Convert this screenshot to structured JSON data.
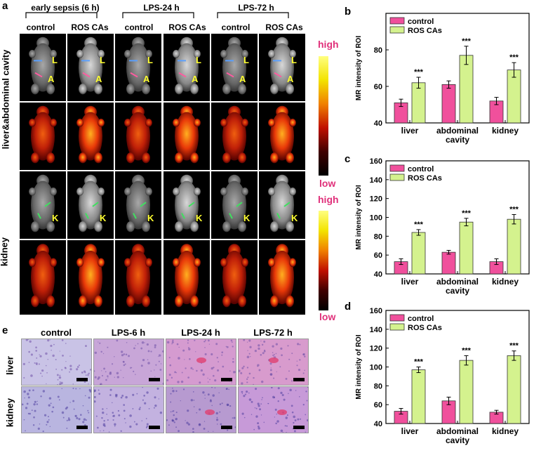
{
  "panel_labels": {
    "a": "a",
    "b": "b",
    "c": "c",
    "d": "d",
    "e": "e"
  },
  "panel_a": {
    "groups": [
      "early sepsis (6 h)",
      "LPS-24 h",
      "LPS-72 h"
    ],
    "conditions": [
      "control",
      "ROS CAs",
      "control",
      "ROS CAs",
      "control",
      "ROS CAs"
    ],
    "row_labels": {
      "liver": "liver&abdominal cavity",
      "kidney": "kidney"
    },
    "organ_marks": {
      "liver": "L",
      "abdominal": "A",
      "kidney": "K"
    },
    "colorbar": {
      "high": "high",
      "low": "low"
    }
  },
  "panel_e": {
    "columns": [
      "control",
      "LPS-6 h",
      "LPS-24 h",
      "LPS-72 h"
    ],
    "rows": [
      "liver",
      "kidney"
    ]
  },
  "chart_data": [
    {
      "id": "b",
      "type": "bar",
      "categories": [
        "liver",
        "abdominal\ncavity",
        "kidney"
      ],
      "series": [
        {
          "name": "control",
          "color": "#f0509c",
          "values": [
            51,
            61,
            52
          ],
          "errors": [
            2,
            2,
            2
          ]
        },
        {
          "name": "ROS CAs",
          "color": "#d4f28e",
          "values": [
            62,
            77,
            69
          ],
          "errors": [
            3,
            5,
            4
          ]
        }
      ],
      "significance": [
        "***",
        "***",
        "***"
      ],
      "ylabel": "MR intensity of ROI",
      "ylim": [
        40,
        100
      ],
      "yticks": [
        40,
        60,
        80
      ]
    },
    {
      "id": "c",
      "type": "bar",
      "categories": [
        "liver",
        "abdominal\ncavity",
        "kidney"
      ],
      "series": [
        {
          "name": "control",
          "color": "#f0509c",
          "values": [
            53,
            63,
            53
          ],
          "errors": [
            3,
            2,
            3
          ]
        },
        {
          "name": "ROS CAs",
          "color": "#d4f28e",
          "values": [
            84,
            95,
            98
          ],
          "errors": [
            3,
            4,
            5
          ]
        }
      ],
      "significance": [
        "***",
        "***",
        "***"
      ],
      "ylabel": "MR intensity of ROI",
      "ylim": [
        40,
        160
      ],
      "yticks": [
        40,
        60,
        80,
        100,
        120,
        140,
        160
      ]
    },
    {
      "id": "d",
      "type": "bar",
      "categories": [
        "liver",
        "abdominal\ncavity",
        "kidney"
      ],
      "series": [
        {
          "name": "control",
          "color": "#f0509c",
          "values": [
            53,
            64,
            52
          ],
          "errors": [
            3,
            4,
            2
          ]
        },
        {
          "name": "ROS CAs",
          "color": "#d4f28e",
          "values": [
            97,
            107,
            112
          ],
          "errors": [
            3,
            5,
            5
          ]
        }
      ],
      "significance": [
        "***",
        "***",
        "***"
      ],
      "ylabel": "MR intensity of ROI",
      "ylim": [
        40,
        160
      ],
      "yticks": [
        40,
        60,
        80,
        100,
        120,
        140,
        160
      ]
    }
  ]
}
